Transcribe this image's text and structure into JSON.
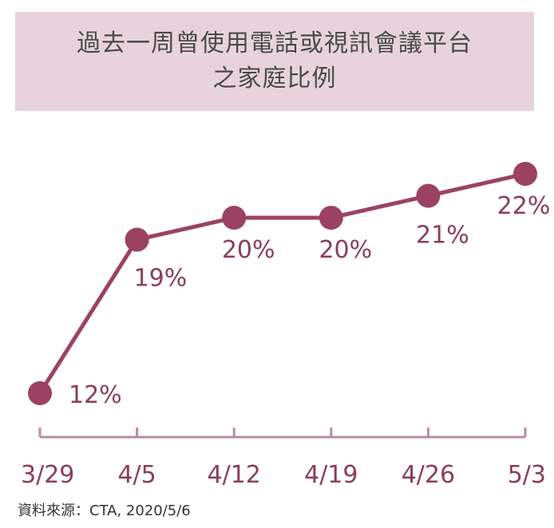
{
  "chart_data": {
    "type": "line",
    "title_lines": [
      "過去一周曾使用電話或視訊會議平台",
      "之家庭比例"
    ],
    "categories": [
      "3/29",
      "4/5",
      "4/12",
      "4/19",
      "4/26",
      "5/3"
    ],
    "values": [
      12,
      19,
      20,
      20,
      21,
      22
    ],
    "value_labels": [
      "12%",
      "19%",
      "20%",
      "20%",
      "21%",
      "22%"
    ],
    "ylim": [
      12,
      22
    ],
    "grid": false,
    "legend": "none",
    "source": "資料來源：CTA, 2020/5/6"
  },
  "colors": {
    "line": "#9b4262",
    "marker": "#9b4262",
    "axis": "#b68da4",
    "label": "#8a3d5c",
    "title_bg": "#e8d3dc"
  }
}
